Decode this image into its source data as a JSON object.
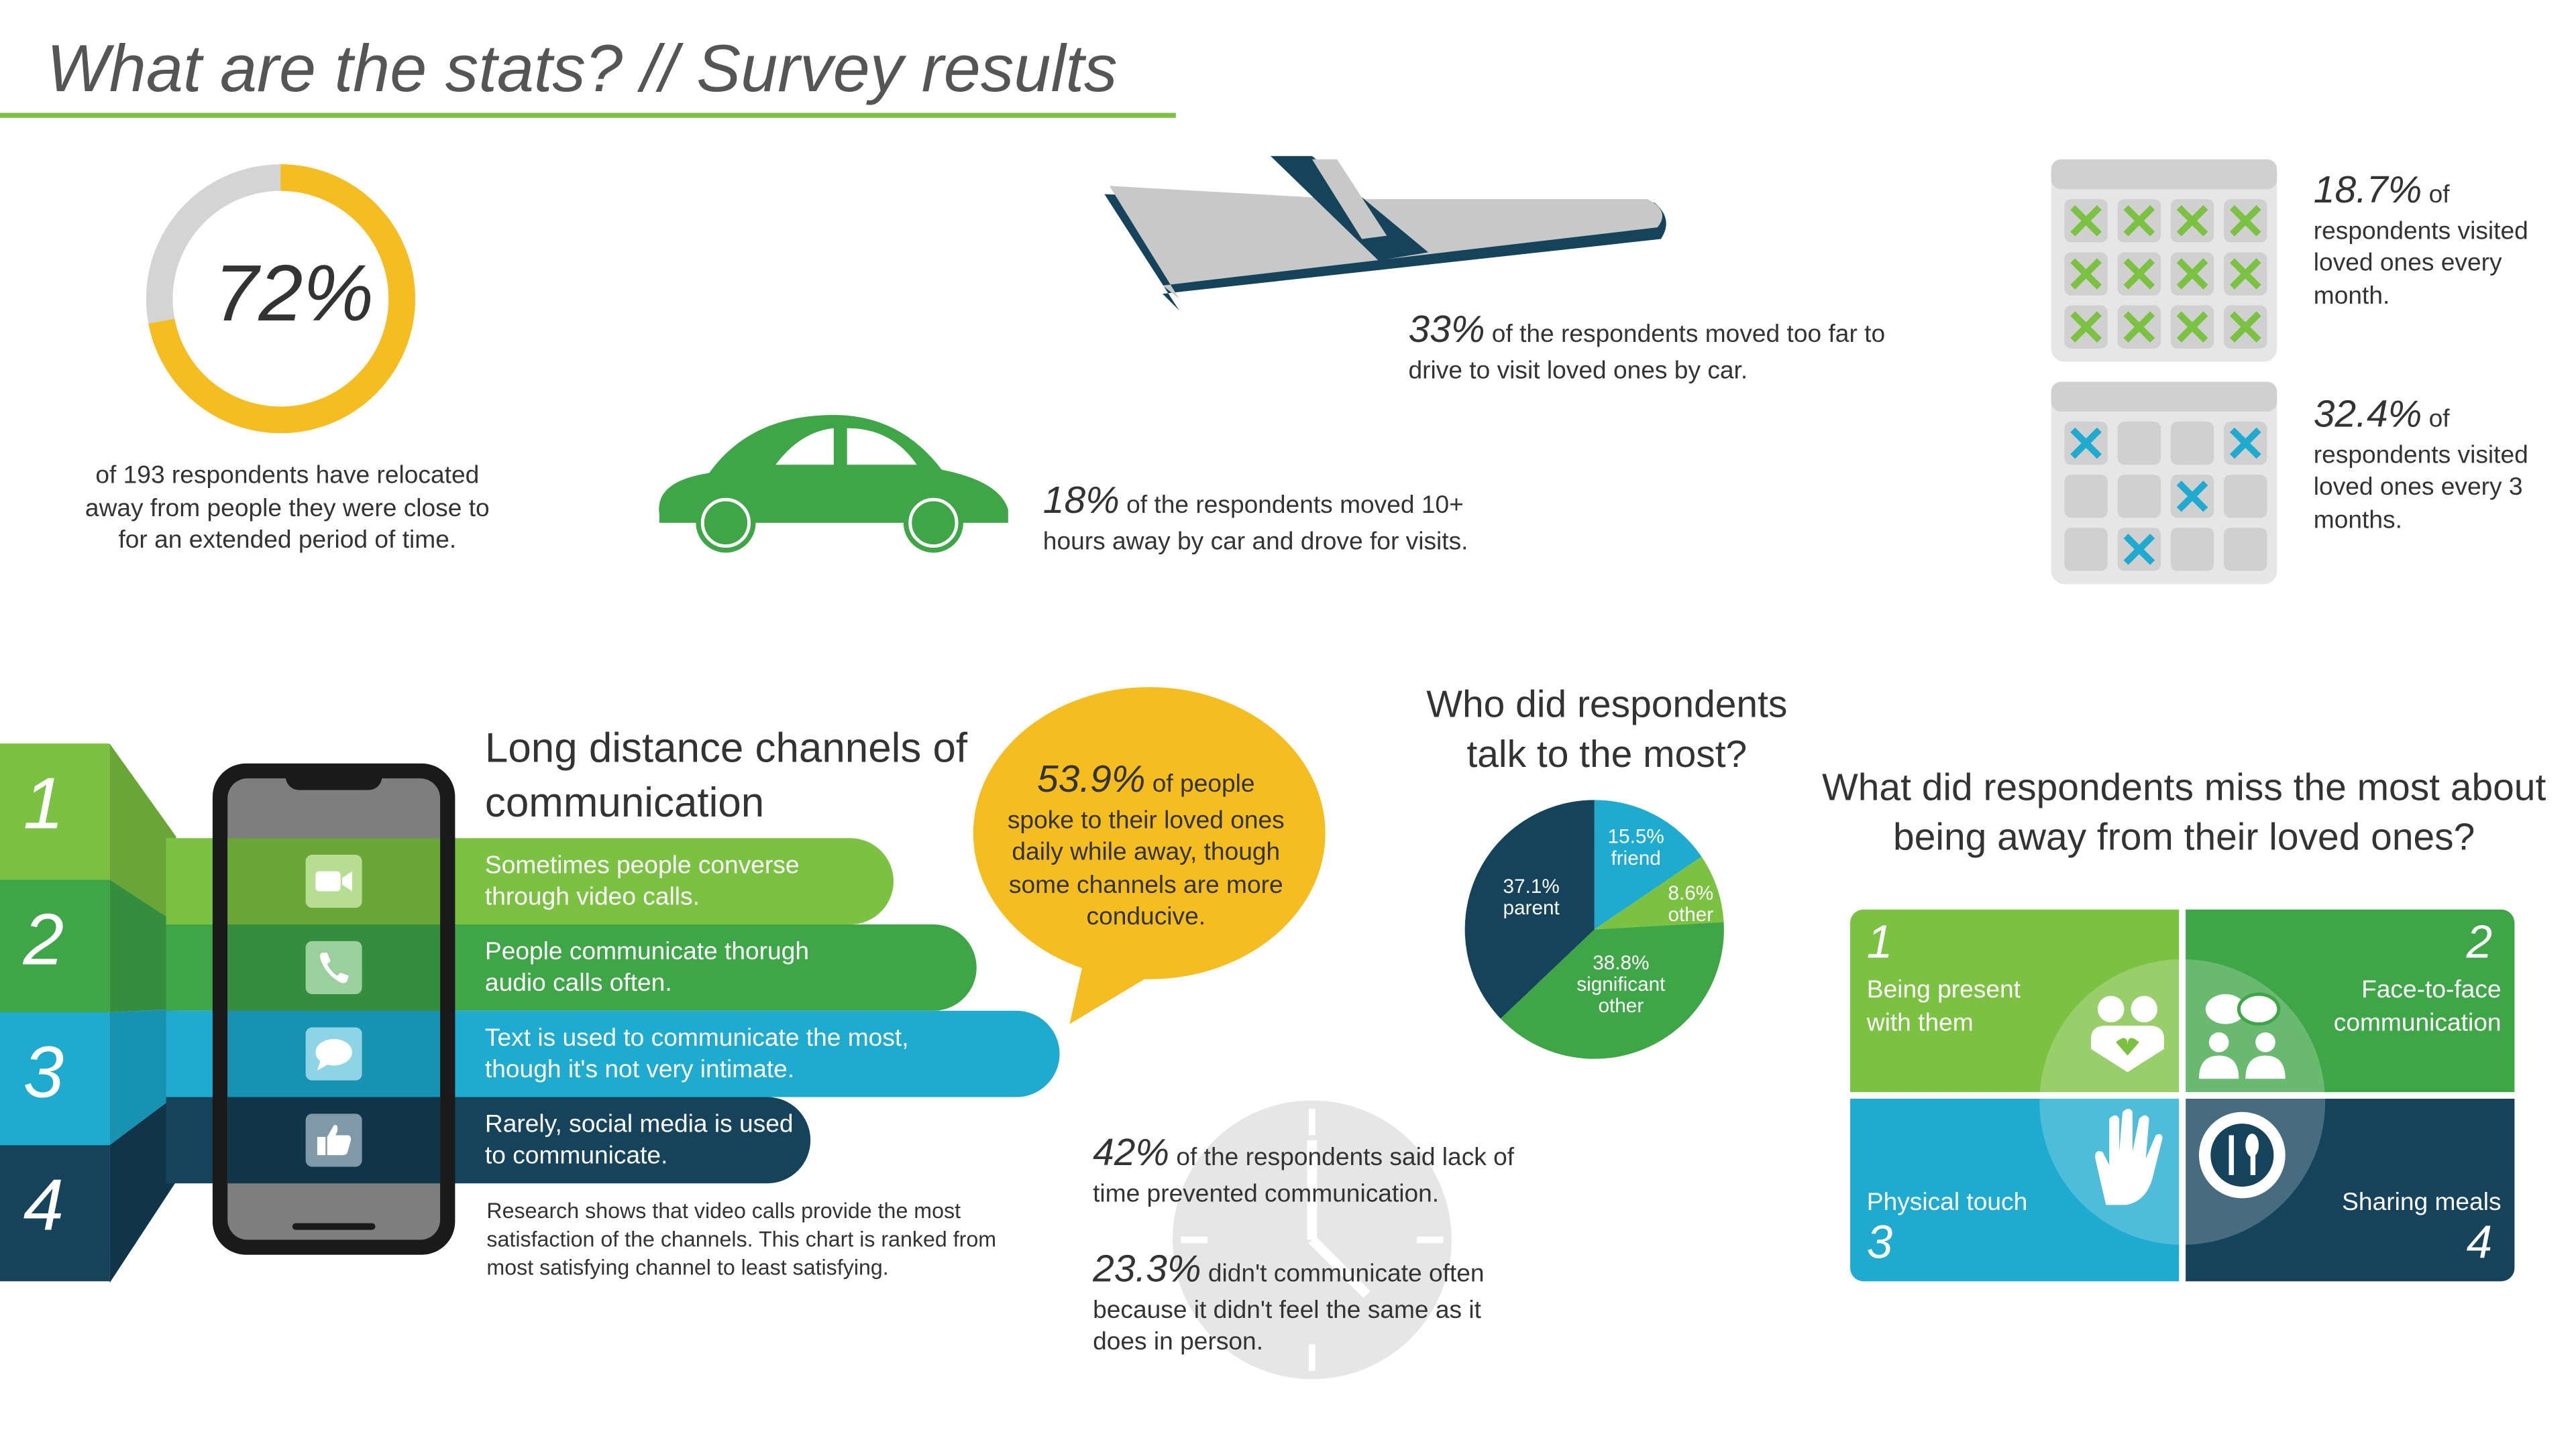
{
  "title": "What are the stats? // Survey results",
  "relocated": {
    "percent": "72%",
    "value": 72,
    "text": "of 193 respondents have relocated away from people they were close to for an extended period of time.",
    "colors": {
      "fill": "#f5bd1f",
      "track": "#d4d4d4"
    }
  },
  "plane": {
    "percent": "33%",
    "text": " of the respondents moved too far to drive to visit loved ones by car.",
    "icon": "airplane-icon"
  },
  "car": {
    "percent": "18%",
    "text": " of the respondents moved 10+ hours away by car and drove for visits.",
    "icon": "car-icon"
  },
  "monthly": {
    "percent": "18.7%",
    "suffix": " of",
    "text": "respondents visited loved ones every month.",
    "icon": "calendar-icon"
  },
  "quarterly": {
    "percent": "32.4%",
    "suffix": " of",
    "text": "respondents visited loved ones every 3 months.",
    "icon": "calendar-icon"
  },
  "channels": {
    "heading": "Long distance channels of communication",
    "items": [
      {
        "rank": "1",
        "icon": "video-camera-icon",
        "text": "Sometimes people converse through video calls.",
        "color": "#7cc242"
      },
      {
        "rank": "2",
        "icon": "phone-icon",
        "text": "People communicate thorugh audio calls often.",
        "color": "#3fa648"
      },
      {
        "rank": "3",
        "icon": "chat-bubble-icon",
        "text": "Text is used to communicate the most, though it's not very intimate.",
        "color": "#1eabcf"
      },
      {
        "rank": "4",
        "icon": "thumbs-up-icon",
        "text": "Rarely, social media is used to communicate.",
        "color": "#15435b"
      }
    ],
    "note": "Research shows that video calls provide the most satisfaction of the channels. This chart is ranked from most satisfying channel to least satisfying."
  },
  "daily": {
    "percent": "53.9%",
    "text_start": " of people",
    "text": "spoke to their loved ones daily while away, though some channels are more conducive.",
    "color": "#f5bd1f"
  },
  "time": {
    "lack_percent": "42%",
    "lack_text": " of the respondents said lack of time prevented communication.",
    "same_percent": "23.3%",
    "same_text": " didn't communicate often because it didn't feel the same as it does in person.",
    "icon": "clock-icon"
  },
  "talk_to": {
    "heading": "Who did respondents talk to the most?",
    "chart_data": {
      "type": "pie",
      "slices": [
        {
          "label": "friend",
          "pct_label": "15.5%",
          "value": 15.5,
          "color": "#1eabcf"
        },
        {
          "label": "other",
          "pct_label": "8.6%",
          "value": 8.6,
          "color": "#7cc242"
        },
        {
          "label": "significant other",
          "pct_label": "38.8%",
          "value": 38.8,
          "color": "#3fa648"
        },
        {
          "label": "parent",
          "pct_label": "37.1%",
          "value": 37.1,
          "color": "#15435b"
        }
      ]
    }
  },
  "miss": {
    "heading": "What did respondents miss the most about being away from their loved ones?",
    "items": [
      {
        "rank": "1",
        "label": "Being present with them",
        "icon": "hugging-people-icon",
        "color": "#7cc242"
      },
      {
        "rank": "2",
        "label": "Face-to-face communication",
        "icon": "conversation-people-icon",
        "color": "#3fa648"
      },
      {
        "rank": "3",
        "label": "Physical touch",
        "icon": "holding-hands-icon",
        "color": "#1eabcf"
      },
      {
        "rank": "4",
        "label": "Sharing meals",
        "icon": "plate-cutlery-icon",
        "color": "#15435b"
      }
    ]
  }
}
